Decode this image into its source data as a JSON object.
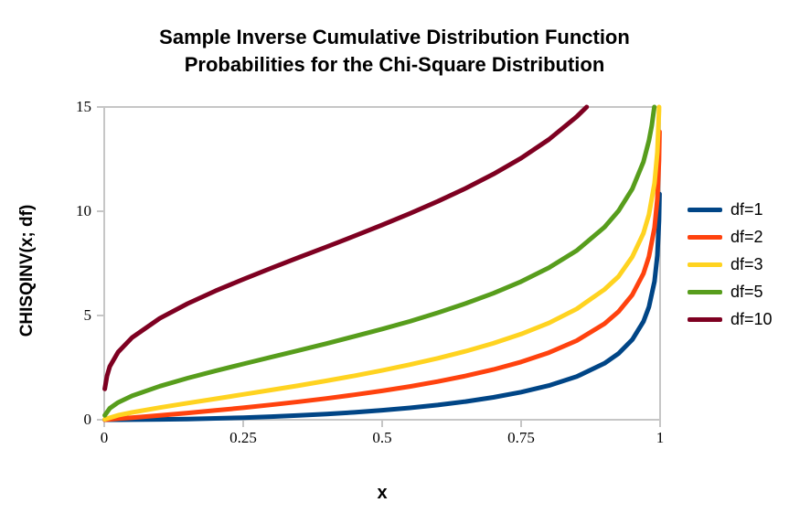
{
  "title": {
    "line1": "Sample Inverse Cumulative Distribution Function",
    "line2": "Probabilities for the Chi-Square Distribution"
  },
  "chart_data": {
    "type": "line",
    "title": "Sample Inverse Cumulative Distribution Function Probabilities for the Chi-Square Distribution",
    "xlabel": "x",
    "ylabel": "CHISQINV(x; df)",
    "xlim": [
      0,
      1
    ],
    "ylim": [
      0,
      15
    ],
    "x_ticks": [
      0,
      0.25,
      0.5,
      0.75,
      1
    ],
    "x_tick_labels": [
      "0",
      "0.25",
      "0.5",
      "0.75",
      "1"
    ],
    "y_ticks": [
      0,
      5,
      10,
      15
    ],
    "y_tick_labels": [
      "0",
      "5",
      "10",
      "15"
    ],
    "grid": false,
    "legend_position": "right",
    "axis_color": "#c6c6c6",
    "text_color": "#000000",
    "background_color": "#ffffff",
    "series": [
      {
        "name": "df=1",
        "df": 1,
        "color": "#004586",
        "points": [
          [
            0.001,
            0.0
          ],
          [
            0.025,
            0.001
          ],
          [
            0.05,
            0.004
          ],
          [
            0.1,
            0.016
          ],
          [
            0.15,
            0.036
          ],
          [
            0.2,
            0.064
          ],
          [
            0.25,
            0.102
          ],
          [
            0.3,
            0.148
          ],
          [
            0.35,
            0.206
          ],
          [
            0.4,
            0.275
          ],
          [
            0.45,
            0.357
          ],
          [
            0.5,
            0.455
          ],
          [
            0.55,
            0.571
          ],
          [
            0.6,
            0.708
          ],
          [
            0.65,
            0.873
          ],
          [
            0.7,
            1.074
          ],
          [
            0.75,
            1.323
          ],
          [
            0.8,
            1.642
          ],
          [
            0.85,
            2.072
          ],
          [
            0.9,
            2.706
          ],
          [
            0.925,
            3.17
          ],
          [
            0.95,
            3.841
          ],
          [
            0.97,
            4.709
          ],
          [
            0.98,
            5.412
          ],
          [
            0.99,
            6.635
          ],
          [
            0.995,
            7.879
          ],
          [
            0.998,
            9.55
          ],
          [
            0.999,
            10.828
          ]
        ]
      },
      {
        "name": "df=2",
        "df": 2,
        "color": "#ff420e",
        "points": [
          [
            0.001,
            0.002
          ],
          [
            0.025,
            0.051
          ],
          [
            0.05,
            0.103
          ],
          [
            0.1,
            0.211
          ],
          [
            0.15,
            0.325
          ],
          [
            0.2,
            0.446
          ],
          [
            0.25,
            0.575
          ],
          [
            0.3,
            0.713
          ],
          [
            0.35,
            0.862
          ],
          [
            0.4,
            1.022
          ],
          [
            0.45,
            1.196
          ],
          [
            0.5,
            1.386
          ],
          [
            0.55,
            1.597
          ],
          [
            0.6,
            1.833
          ],
          [
            0.65,
            2.1
          ],
          [
            0.7,
            2.408
          ],
          [
            0.75,
            2.773
          ],
          [
            0.8,
            3.219
          ],
          [
            0.85,
            3.794
          ],
          [
            0.9,
            4.605
          ],
          [
            0.925,
            5.181
          ],
          [
            0.95,
            5.991
          ],
          [
            0.97,
            7.013
          ],
          [
            0.98,
            7.824
          ],
          [
            0.99,
            9.21
          ],
          [
            0.995,
            10.597
          ],
          [
            0.998,
            12.429
          ],
          [
            0.999,
            13.816
          ]
        ]
      },
      {
        "name": "df=3",
        "df": 3,
        "color": "#ffd320",
        "points": [
          [
            0.001,
            0.024
          ],
          [
            0.025,
            0.216
          ],
          [
            0.05,
            0.352
          ],
          [
            0.1,
            0.584
          ],
          [
            0.15,
            0.798
          ],
          [
            0.2,
            1.005
          ],
          [
            0.25,
            1.213
          ],
          [
            0.3,
            1.424
          ],
          [
            0.35,
            1.642
          ],
          [
            0.4,
            1.869
          ],
          [
            0.45,
            2.109
          ],
          [
            0.5,
            2.366
          ],
          [
            0.55,
            2.643
          ],
          [
            0.6,
            2.946
          ],
          [
            0.65,
            3.283
          ],
          [
            0.7,
            3.665
          ],
          [
            0.75,
            4.108
          ],
          [
            0.8,
            4.642
          ],
          [
            0.85,
            5.317
          ],
          [
            0.9,
            6.251
          ],
          [
            0.925,
            6.865
          ],
          [
            0.95,
            7.815
          ],
          [
            0.97,
            8.947
          ],
          [
            0.98,
            9.837
          ],
          [
            0.99,
            11.345
          ],
          [
            0.995,
            12.838
          ],
          [
            0.998,
            14.796
          ],
          [
            0.9982,
            15.0
          ]
        ]
      },
      {
        "name": "df=5",
        "df": 5,
        "color": "#579d1c",
        "points": [
          [
            0.001,
            0.21
          ],
          [
            0.01,
            0.554
          ],
          [
            0.025,
            0.831
          ],
          [
            0.05,
            1.145
          ],
          [
            0.1,
            1.61
          ],
          [
            0.15,
            1.994
          ],
          [
            0.2,
            2.343
          ],
          [
            0.25,
            2.675
          ],
          [
            0.3,
            3.0
          ],
          [
            0.35,
            3.325
          ],
          [
            0.4,
            3.655
          ],
          [
            0.45,
            4.0
          ],
          [
            0.5,
            4.351
          ],
          [
            0.55,
            4.721
          ],
          [
            0.6,
            5.132
          ],
          [
            0.65,
            5.573
          ],
          [
            0.7,
            6.064
          ],
          [
            0.75,
            6.626
          ],
          [
            0.8,
            7.289
          ],
          [
            0.85,
            8.115
          ],
          [
            0.9,
            9.236
          ],
          [
            0.925,
            10.008
          ],
          [
            0.95,
            11.07
          ],
          [
            0.97,
            12.374
          ],
          [
            0.98,
            13.388
          ],
          [
            0.985,
            14.108
          ],
          [
            0.9896,
            15.0
          ]
        ]
      },
      {
        "name": "df=10",
        "df": 10,
        "color": "#7e0021",
        "points": [
          [
            0.001,
            1.479
          ],
          [
            0.005,
            2.094
          ],
          [
            0.01,
            2.558
          ],
          [
            0.025,
            3.247
          ],
          [
            0.05,
            3.94
          ],
          [
            0.1,
            4.865
          ],
          [
            0.15,
            5.57
          ],
          [
            0.2,
            6.179
          ],
          [
            0.25,
            6.737
          ],
          [
            0.3,
            7.267
          ],
          [
            0.35,
            7.783
          ],
          [
            0.4,
            8.295
          ],
          [
            0.45,
            8.812
          ],
          [
            0.5,
            9.342
          ],
          [
            0.55,
            9.894
          ],
          [
            0.6,
            10.473
          ],
          [
            0.65,
            11.097
          ],
          [
            0.7,
            11.781
          ],
          [
            0.75,
            12.549
          ],
          [
            0.8,
            13.442
          ],
          [
            0.85,
            14.534
          ],
          [
            0.868,
            15.0
          ]
        ]
      }
    ]
  }
}
